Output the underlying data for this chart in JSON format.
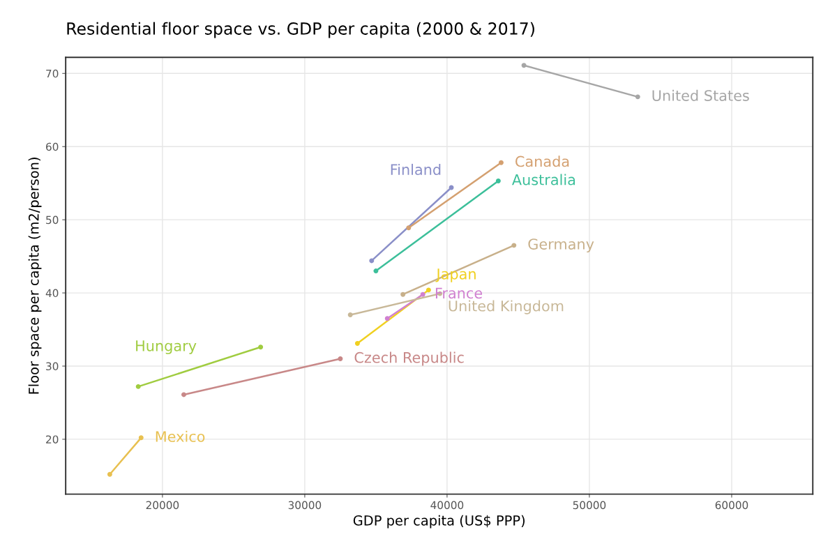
{
  "chart_data": {
    "type": "line",
    "title": "Residential floor space vs. GDP per capita (2000 & 2017)",
    "xlabel": "GDP per capita (US$ PPP)",
    "ylabel": "Floor space per capita (m2/person)",
    "xlim": [
      13200,
      65700
    ],
    "ylim": [
      12.5,
      72.2
    ],
    "xticks": [
      20000,
      30000,
      40000,
      50000,
      60000
    ],
    "yticks": [
      20,
      30,
      40,
      50,
      60,
      70
    ],
    "grid": true,
    "marker": "circle",
    "line_style": "solid",
    "series": [
      {
        "name": "United States",
        "color": "#a6a6a6",
        "x": [
          45400,
          53400
        ],
        "values": [
          71.1,
          66.8
        ]
      },
      {
        "name": "Finland",
        "color": "#8a8fc8",
        "x": [
          34700,
          40300
        ],
        "values": [
          44.4,
          54.4
        ]
      },
      {
        "name": "Canada",
        "color": "#d4a070",
        "x": [
          37300,
          43800
        ],
        "values": [
          48.9,
          57.8
        ]
      },
      {
        "name": "Australia",
        "color": "#3cbf9a",
        "x": [
          35000,
          43600
        ],
        "values": [
          43.0,
          55.3
        ]
      },
      {
        "name": "Germany",
        "color": "#c8b08a",
        "x": [
          36900,
          44700
        ],
        "values": [
          39.8,
          46.5
        ]
      },
      {
        "name": "Japan",
        "color": "#f0d020",
        "x": [
          33700,
          38700
        ],
        "values": [
          33.1,
          40.4
        ]
      },
      {
        "name": "France",
        "color": "#d080d0",
        "x": [
          35800,
          38300
        ],
        "values": [
          36.5,
          39.8
        ]
      },
      {
        "name": "United Kingdom",
        "color": "#c8b898",
        "x": [
          33200,
          39500
        ],
        "values": [
          37.0,
          39.9
        ]
      },
      {
        "name": "Hungary",
        "color": "#a0cc40",
        "x": [
          18300,
          26900
        ],
        "values": [
          27.2,
          32.6
        ]
      },
      {
        "name": "Czech Republic",
        "color": "#c88888",
        "x": [
          21500,
          32500
        ],
        "values": [
          26.1,
          31.0
        ]
      },
      {
        "name": "Mexico",
        "color": "#e8c050",
        "x": [
          16300,
          18500
        ],
        "values": [
          15.2,
          20.2
        ]
      }
    ]
  }
}
